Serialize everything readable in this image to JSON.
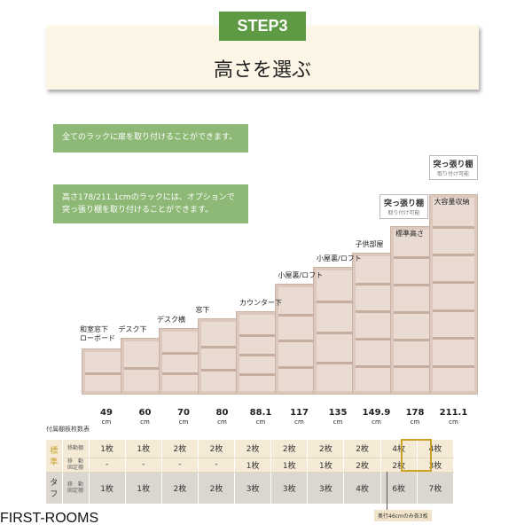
{
  "header": {
    "step": "STEP3",
    "title": "高さを選ぶ"
  },
  "notes": [
    "全てのラックに扉を取り付けることができます。",
    "高さ178/211.1cmのラックには、オプションで突っ張り棚を取り付けることができます。"
  ],
  "racks": [
    {
      "height_cm": 49,
      "height_label": "49",
      "label": "和室窓下\nローボード",
      "shelves": 1
    },
    {
      "height_cm": 60,
      "height_label": "60",
      "label": "デスク下",
      "shelves": 1
    },
    {
      "height_cm": 70,
      "height_label": "70",
      "label": "デスク横",
      "shelves": 2
    },
    {
      "height_cm": 80,
      "height_label": "80",
      "label": "窓下",
      "shelves": 2
    },
    {
      "height_cm": 88.1,
      "height_label": "88.1",
      "label": "カウンター下",
      "shelves": 3
    },
    {
      "height_cm": 117,
      "height_label": "117",
      "label": "小屋裏/ロフト",
      "shelves": 3
    },
    {
      "height_cm": 135,
      "height_label": "135",
      "label": "小屋裏/ロフト",
      "shelves": 3
    },
    {
      "height_cm": 149.9,
      "height_label": "149.9",
      "label": "子供部屋",
      "shelves": 4
    },
    {
      "height_cm": 178,
      "height_label": "178",
      "label": "標準高さ",
      "shelves": 5
    },
    {
      "height_cm": 211.1,
      "height_label": "211.1",
      "label": "大容量収納",
      "shelves": 6
    }
  ],
  "unit": "cm",
  "tension_shelf": {
    "title": "突っ張り棚",
    "subtitle": "取り付け可能"
  },
  "table": {
    "title": "付属棚板枚数表",
    "groups": {
      "standard": "標準",
      "tough": "タフ"
    },
    "row_labels": {
      "movable": "移動棚",
      "movable_fixed": "移　動\n固定棚"
    },
    "standard_movable": [
      "1枚",
      "1枚",
      "2枚",
      "2枚",
      "2枚",
      "2枚",
      "2枚",
      "2枚",
      "4枚",
      "4枚"
    ],
    "standard_fixed": [
      "-",
      "-",
      "-",
      "-",
      "1枚",
      "1枚",
      "1枚",
      "2枚",
      "2枚",
      "3枚"
    ],
    "tough_fixed": [
      "1枚",
      "1枚",
      "2枚",
      "2枚",
      "3枚",
      "3枚",
      "3枚",
      "4枚",
      "6枚",
      "7枚"
    ],
    "footnote": "奥行46cmのみ各3枚",
    "highlight_color": "#c9a227"
  },
  "brand": "FIRST-ROOMS",
  "colors": {
    "green": "#5e9a43",
    "note_green": "#8db876",
    "cream": "#fdf5e6"
  }
}
